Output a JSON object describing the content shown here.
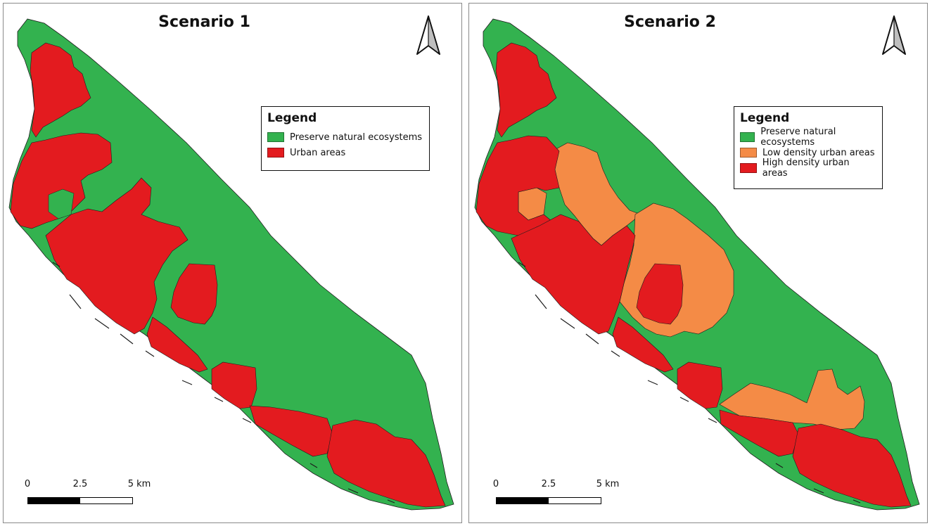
{
  "colors": {
    "preserve": "#33b24f",
    "urban": "#e31b1f",
    "low_density": "#f48b46",
    "high_density": "#e31b1f"
  },
  "panels": [
    {
      "title": "Scenario 1",
      "legend": {
        "title": "Legend",
        "items": [
          {
            "label": "Preserve natural ecosystems",
            "color": "#33b24f"
          },
          {
            "label": "Urban areas",
            "color": "#e31b1f"
          }
        ]
      },
      "scale": {
        "labels": [
          "0",
          "2.5",
          "5 km"
        ]
      },
      "north_icon": "north-arrow-icon"
    },
    {
      "title": "Scenario 2",
      "legend": {
        "title": "Legend",
        "items": [
          {
            "label": "Preserve natural ecosystems",
            "color": "#33b24f"
          },
          {
            "label": "Low density urban areas",
            "color": "#f48b46"
          },
          {
            "label": "High density urban areas",
            "color": "#e31b1f"
          }
        ]
      },
      "scale": {
        "labels": [
          "0",
          "2.5",
          "5 km"
        ]
      },
      "north_icon": "north-arrow-icon"
    }
  ]
}
